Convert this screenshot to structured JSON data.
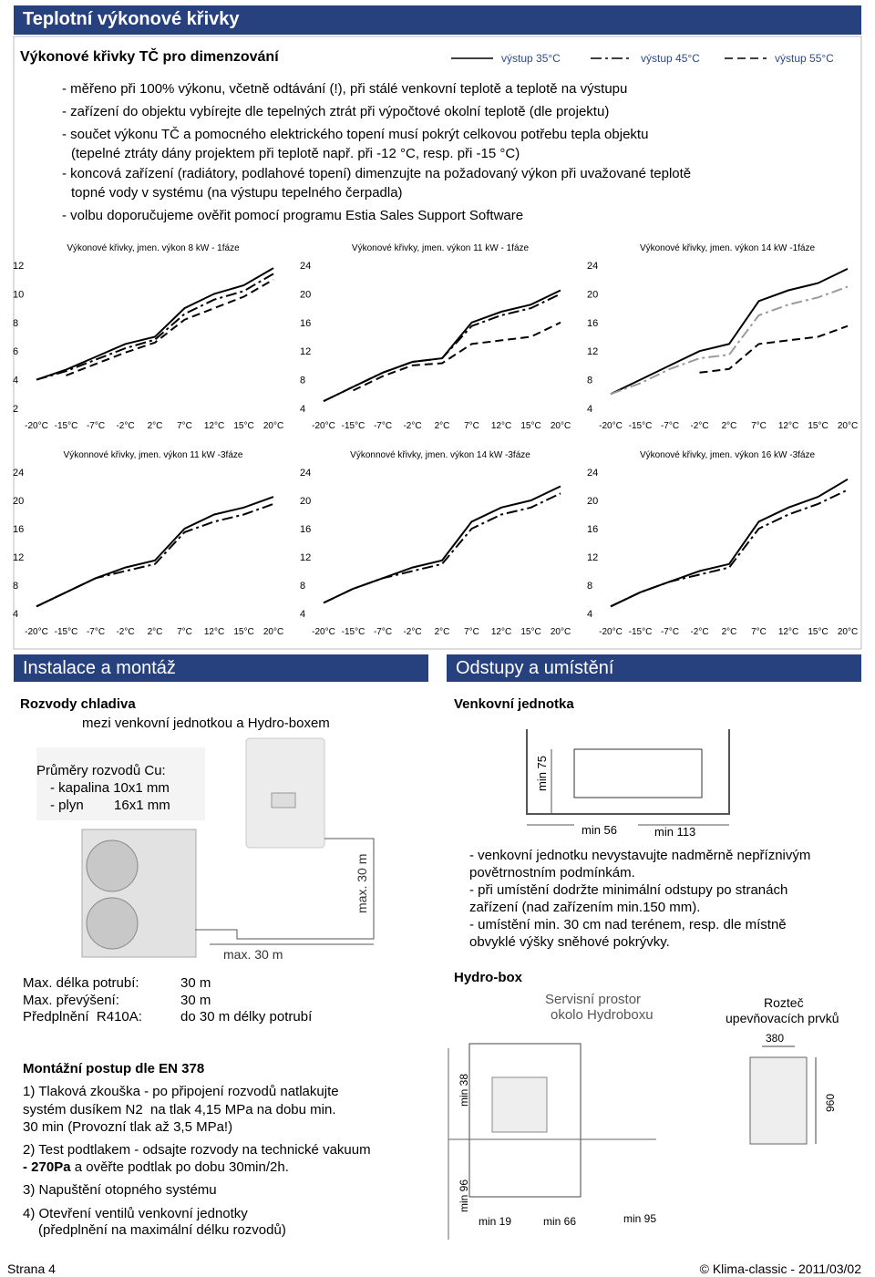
{
  "header": {
    "title": "Teplotní výkonové křivky"
  },
  "curves": {
    "title": "Výkonové křivky TČ pro dimenzování",
    "legend": [
      {
        "name": "výstup 35°C",
        "style": "solid"
      },
      {
        "name": "výstup 45°C",
        "style": "dash-dot"
      },
      {
        "name": "výstup 55°C",
        "style": "dashed"
      }
    ],
    "lines": [
      "- měřeno při 100% výkonu, včetně odtávání (!), při stálé venkovní teplotě a teplotě na výstupu",
      "- zařízení do objektu vybírejte dle tepelných ztrát při výpočtové okolní teplotě (dle projektu)",
      "- součet výkonu TČ a pomocného elektrického topení musí pokrýt celkovou potřebu tepla objektu",
      "(tepelné ztráty dány projektem při teplotě např. při -12 °C, resp. při -15 °C)",
      "- koncová zařízení (radiátory, podlahové topení) dimenzujte na požadovaný výkon při uvažované teplotě",
      "topné vody v systému (na výstupu tepelného čerpadla)",
      "- volbu doporučujeme ověřit pomocí programu Estia Sales Support Software"
    ]
  },
  "chart_data": [
    {
      "type": "line",
      "title": "Výkonové křivky, jmen. výkon 8 kW - 1fáze",
      "categories": [
        "-20°C",
        "-15°C",
        "-7°C",
        "-2°C",
        "2°C",
        "7°C",
        "12°C",
        "15°C",
        "20°C"
      ],
      "ylim": [
        2,
        12
      ],
      "yticks": [
        2,
        4,
        6,
        8,
        10,
        12
      ],
      "grid": false,
      "series": [
        {
          "style": "solid",
          "color": "#000000",
          "values": [
            4.0,
            4.7,
            5.6,
            6.5,
            7.0,
            9.0,
            10.0,
            10.6,
            11.8
          ]
        },
        {
          "style": "dash-dot",
          "color": "#000000",
          "values": [
            4.0,
            4.6,
            5.4,
            6.2,
            6.8,
            8.6,
            9.6,
            10.2,
            11.4
          ]
        },
        {
          "style": "dashed",
          "color": "#000000",
          "values": [
            null,
            4.3,
            5.1,
            5.9,
            6.6,
            8.2,
            9.0,
            9.8,
            11.0
          ]
        }
      ]
    },
    {
      "type": "line",
      "title": "Výkonové křivky, jmen. výkon 11 kW - 1fáze",
      "categories": [
        "-20°C",
        "-15°C",
        "-7°C",
        "-2°C",
        "2°C",
        "7°C",
        "12°C",
        "15°C",
        "20°C"
      ],
      "ylim": [
        4,
        24
      ],
      "yticks": [
        4,
        8,
        12,
        16,
        20,
        24
      ],
      "grid": false,
      "series": [
        {
          "style": "solid",
          "color": "#000000",
          "values": [
            5,
            7,
            9,
            10.5,
            11,
            16,
            17.5,
            18.5,
            20.5
          ]
        },
        {
          "style": "dash-dot",
          "color": "#000000",
          "values": [
            5,
            7,
            9,
            10.5,
            11,
            15.5,
            17,
            18,
            20
          ]
        },
        {
          "style": "dashed",
          "color": "#000000",
          "values": [
            null,
            6.5,
            8.5,
            10,
            10.3,
            13,
            13.5,
            14,
            16
          ]
        }
      ]
    },
    {
      "type": "line",
      "title": "Výkonové křivky, jmen. výkon 14 kW -1fáze",
      "categories": [
        "-20°C",
        "-15°C",
        "-7°C",
        "-2°C",
        "2°C",
        "7°C",
        "12°C",
        "15°C",
        "20°C"
      ],
      "ylim": [
        4,
        24
      ],
      "yticks": [
        4,
        8,
        12,
        16,
        20,
        24
      ],
      "grid": false,
      "series": [
        {
          "style": "solid",
          "color": "#000000",
          "values": [
            6,
            8,
            10,
            12,
            13,
            19,
            20.5,
            21.5,
            23.5
          ]
        },
        {
          "style": "dash-dot",
          "color": "#9a9a9a",
          "values": [
            6,
            7.5,
            9.5,
            11,
            11.5,
            17,
            18.5,
            19.5,
            21
          ]
        },
        {
          "style": "dashed",
          "color": "#000000",
          "values": [
            null,
            null,
            null,
            9,
            9.5,
            13,
            13.5,
            14,
            15.5
          ]
        }
      ]
    },
    {
      "type": "line",
      "title": "Výkonnové křivky, jmen. výkon 11 kW -3fáze",
      "categories": [
        "-20°C",
        "-15°C",
        "-7°C",
        "-2°C",
        "2°C",
        "7°C",
        "12°C",
        "15°C",
        "20°C"
      ],
      "ylim": [
        4,
        24
      ],
      "yticks": [
        4,
        8,
        12,
        16,
        20,
        24
      ],
      "grid": false,
      "series": [
        {
          "style": "solid",
          "color": "#000000",
          "values": [
            5,
            7,
            9,
            10.5,
            11.5,
            16,
            18,
            19,
            20.5
          ]
        },
        {
          "style": "dash-dot",
          "color": "#000000",
          "values": [
            5,
            7,
            9,
            10,
            11,
            15.5,
            17,
            18,
            19.5
          ]
        }
      ]
    },
    {
      "type": "line",
      "title": "Výkonnové křivky, jmen. výkon 14 kW -3fáze",
      "categories": [
        "-20°C",
        "-15°C",
        "-7°C",
        "-2°C",
        "2°C",
        "7°C",
        "12°C",
        "15°C",
        "20°C"
      ],
      "ylim": [
        4,
        24
      ],
      "yticks": [
        4,
        8,
        12,
        16,
        20,
        24
      ],
      "grid": false,
      "series": [
        {
          "style": "solid",
          "color": "#000000",
          "values": [
            5.5,
            7.5,
            9,
            10.5,
            11.5,
            17,
            19,
            20,
            22
          ]
        },
        {
          "style": "dash-dot",
          "color": "#000000",
          "values": [
            5.5,
            7.5,
            9,
            10,
            11,
            16,
            18,
            19,
            21
          ]
        }
      ]
    },
    {
      "type": "line",
      "title": "Výkonové křivky, jmen. výkon 16 kW -3fáze",
      "categories": [
        "-20°C",
        "-15°C",
        "-7°C",
        "-2°C",
        "2°C",
        "7°C",
        "12°C",
        "15°C",
        "20°C"
      ],
      "ylim": [
        4,
        24
      ],
      "yticks": [
        4,
        8,
        12,
        16,
        20,
        24
      ],
      "grid": false,
      "series": [
        {
          "style": "solid",
          "color": "#000000",
          "values": [
            5,
            7,
            8.5,
            10,
            11,
            17,
            19,
            20.5,
            23
          ]
        },
        {
          "style": "dash-dot",
          "color": "#000000",
          "values": [
            5,
            7,
            8.5,
            9.5,
            10.5,
            16,
            18,
            19.5,
            21.5
          ]
        }
      ]
    }
  ],
  "install": {
    "title": "Instalace a montáž",
    "subtitle": "Rozvody chladiva",
    "subtitle2": "mezi venkovní jednotkou a Hydro-boxem",
    "pipes": [
      "Průměry rozvodů Cu:",
      "- kapalina 10x1 mm",
      "- plyn        16x1 mm"
    ],
    "figure": {
      "vertical": "max. 30 m",
      "horizontal": "max. 30 m"
    },
    "limits": [
      [
        "Max. délka potrubí:",
        "30 m"
      ],
      [
        "Max. převýšení:",
        "30 m"
      ],
      [
        "Předplnění  R410A:",
        "do 30 m délky potrubí"
      ]
    ],
    "procedure": {
      "title": "Montážní postup dle EN 378",
      "step1": [
        "1) Tlaková zkouška - po připojení rozvodů natlakujte",
        "systém dusíkem N2  na tlak 4,15 MPa na dobu min.",
        "30 min (Provozní tlak až 3,5 MPa!)"
      ],
      "step2": [
        "2) Test podtlakem - odsajte rozvody na technické vakuum",
        "- 270Pa",
        " a ověřte podtlak po dobu 30min/2h."
      ],
      "step3": "3) Napuštění otopného systému",
      "step4": [
        "4) Otevření ventilů venkovní jednotky",
        "(předplnění na maximální délku rozvodů)"
      ]
    }
  },
  "placement": {
    "title": "Odstupy a umístění",
    "outdoor": {
      "title": "Venkovní jednotka",
      "dims": [
        "min 75",
        "min 56",
        "min 113"
      ],
      "notes": [
        "- venkovní jednotku nevystavujte nadměrně nepříznivým",
        "povětrnostním podmínkám.",
        "- při umístění dodržte minimální odstupy po stranách",
        "zařízení (nad zařízením min.150 mm).",
        "- umístění min. 30 cm nad terénem, resp. dle místně",
        "obvyklé výšky sněhové pokrývky."
      ]
    },
    "hydrobox": {
      "title": "Hydro-box",
      "service": [
        "Servisní prostor",
        "okolo Hydroboxu"
      ],
      "spacing": [
        "Rozteč",
        "upevňovacích prvků"
      ],
      "dims": [
        "380",
        "960",
        "min 38",
        "min 96",
        "min 19",
        "min 66",
        "min 95"
      ]
    }
  },
  "footer": {
    "left": "Strana 4",
    "right": "© Klima-classic - 2011/03/02"
  }
}
